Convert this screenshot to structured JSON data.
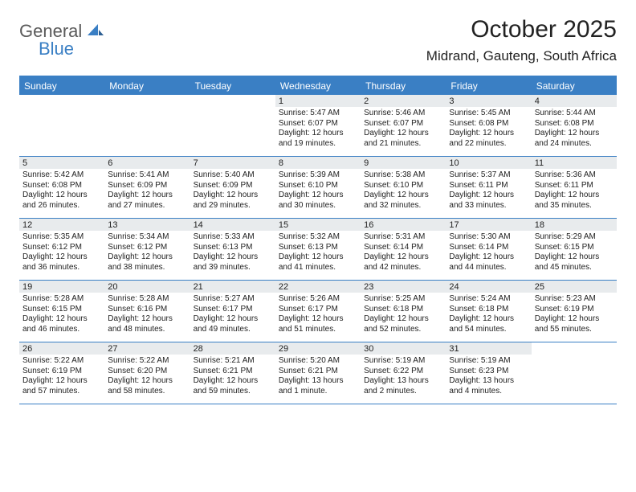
{
  "logo": {
    "word1": "General",
    "word2": "Blue"
  },
  "title": "October 2025",
  "location": "Midrand, Gauteng, South Africa",
  "colors": {
    "brand": "#3a7fc4",
    "band": "#e8ebed",
    "text": "#222222",
    "logo_gray": "#5a5a5a"
  },
  "days_of_week": [
    "Sunday",
    "Monday",
    "Tuesday",
    "Wednesday",
    "Thursday",
    "Friday",
    "Saturday"
  ],
  "weeks": [
    [
      null,
      null,
      null,
      {
        "n": "1",
        "sr": "Sunrise: 5:47 AM",
        "ss": "Sunset: 6:07 PM",
        "d1": "Daylight: 12 hours",
        "d2": "and 19 minutes."
      },
      {
        "n": "2",
        "sr": "Sunrise: 5:46 AM",
        "ss": "Sunset: 6:07 PM",
        "d1": "Daylight: 12 hours",
        "d2": "and 21 minutes."
      },
      {
        "n": "3",
        "sr": "Sunrise: 5:45 AM",
        "ss": "Sunset: 6:08 PM",
        "d1": "Daylight: 12 hours",
        "d2": "and 22 minutes."
      },
      {
        "n": "4",
        "sr": "Sunrise: 5:44 AM",
        "ss": "Sunset: 6:08 PM",
        "d1": "Daylight: 12 hours",
        "d2": "and 24 minutes."
      }
    ],
    [
      {
        "n": "5",
        "sr": "Sunrise: 5:42 AM",
        "ss": "Sunset: 6:08 PM",
        "d1": "Daylight: 12 hours",
        "d2": "and 26 minutes."
      },
      {
        "n": "6",
        "sr": "Sunrise: 5:41 AM",
        "ss": "Sunset: 6:09 PM",
        "d1": "Daylight: 12 hours",
        "d2": "and 27 minutes."
      },
      {
        "n": "7",
        "sr": "Sunrise: 5:40 AM",
        "ss": "Sunset: 6:09 PM",
        "d1": "Daylight: 12 hours",
        "d2": "and 29 minutes."
      },
      {
        "n": "8",
        "sr": "Sunrise: 5:39 AM",
        "ss": "Sunset: 6:10 PM",
        "d1": "Daylight: 12 hours",
        "d2": "and 30 minutes."
      },
      {
        "n": "9",
        "sr": "Sunrise: 5:38 AM",
        "ss": "Sunset: 6:10 PM",
        "d1": "Daylight: 12 hours",
        "d2": "and 32 minutes."
      },
      {
        "n": "10",
        "sr": "Sunrise: 5:37 AM",
        "ss": "Sunset: 6:11 PM",
        "d1": "Daylight: 12 hours",
        "d2": "and 33 minutes."
      },
      {
        "n": "11",
        "sr": "Sunrise: 5:36 AM",
        "ss": "Sunset: 6:11 PM",
        "d1": "Daylight: 12 hours",
        "d2": "and 35 minutes."
      }
    ],
    [
      {
        "n": "12",
        "sr": "Sunrise: 5:35 AM",
        "ss": "Sunset: 6:12 PM",
        "d1": "Daylight: 12 hours",
        "d2": "and 36 minutes."
      },
      {
        "n": "13",
        "sr": "Sunrise: 5:34 AM",
        "ss": "Sunset: 6:12 PM",
        "d1": "Daylight: 12 hours",
        "d2": "and 38 minutes."
      },
      {
        "n": "14",
        "sr": "Sunrise: 5:33 AM",
        "ss": "Sunset: 6:13 PM",
        "d1": "Daylight: 12 hours",
        "d2": "and 39 minutes."
      },
      {
        "n": "15",
        "sr": "Sunrise: 5:32 AM",
        "ss": "Sunset: 6:13 PM",
        "d1": "Daylight: 12 hours",
        "d2": "and 41 minutes."
      },
      {
        "n": "16",
        "sr": "Sunrise: 5:31 AM",
        "ss": "Sunset: 6:14 PM",
        "d1": "Daylight: 12 hours",
        "d2": "and 42 minutes."
      },
      {
        "n": "17",
        "sr": "Sunrise: 5:30 AM",
        "ss": "Sunset: 6:14 PM",
        "d1": "Daylight: 12 hours",
        "d2": "and 44 minutes."
      },
      {
        "n": "18",
        "sr": "Sunrise: 5:29 AM",
        "ss": "Sunset: 6:15 PM",
        "d1": "Daylight: 12 hours",
        "d2": "and 45 minutes."
      }
    ],
    [
      {
        "n": "19",
        "sr": "Sunrise: 5:28 AM",
        "ss": "Sunset: 6:15 PM",
        "d1": "Daylight: 12 hours",
        "d2": "and 46 minutes."
      },
      {
        "n": "20",
        "sr": "Sunrise: 5:28 AM",
        "ss": "Sunset: 6:16 PM",
        "d1": "Daylight: 12 hours",
        "d2": "and 48 minutes."
      },
      {
        "n": "21",
        "sr": "Sunrise: 5:27 AM",
        "ss": "Sunset: 6:17 PM",
        "d1": "Daylight: 12 hours",
        "d2": "and 49 minutes."
      },
      {
        "n": "22",
        "sr": "Sunrise: 5:26 AM",
        "ss": "Sunset: 6:17 PM",
        "d1": "Daylight: 12 hours",
        "d2": "and 51 minutes."
      },
      {
        "n": "23",
        "sr": "Sunrise: 5:25 AM",
        "ss": "Sunset: 6:18 PM",
        "d1": "Daylight: 12 hours",
        "d2": "and 52 minutes."
      },
      {
        "n": "24",
        "sr": "Sunrise: 5:24 AM",
        "ss": "Sunset: 6:18 PM",
        "d1": "Daylight: 12 hours",
        "d2": "and 54 minutes."
      },
      {
        "n": "25",
        "sr": "Sunrise: 5:23 AM",
        "ss": "Sunset: 6:19 PM",
        "d1": "Daylight: 12 hours",
        "d2": "and 55 minutes."
      }
    ],
    [
      {
        "n": "26",
        "sr": "Sunrise: 5:22 AM",
        "ss": "Sunset: 6:19 PM",
        "d1": "Daylight: 12 hours",
        "d2": "and 57 minutes."
      },
      {
        "n": "27",
        "sr": "Sunrise: 5:22 AM",
        "ss": "Sunset: 6:20 PM",
        "d1": "Daylight: 12 hours",
        "d2": "and 58 minutes."
      },
      {
        "n": "28",
        "sr": "Sunrise: 5:21 AM",
        "ss": "Sunset: 6:21 PM",
        "d1": "Daylight: 12 hours",
        "d2": "and 59 minutes."
      },
      {
        "n": "29",
        "sr": "Sunrise: 5:20 AM",
        "ss": "Sunset: 6:21 PM",
        "d1": "Daylight: 13 hours",
        "d2": "and 1 minute."
      },
      {
        "n": "30",
        "sr": "Sunrise: 5:19 AM",
        "ss": "Sunset: 6:22 PM",
        "d1": "Daylight: 13 hours",
        "d2": "and 2 minutes."
      },
      {
        "n": "31",
        "sr": "Sunrise: 5:19 AM",
        "ss": "Sunset: 6:23 PM",
        "d1": "Daylight: 13 hours",
        "d2": "and 4 minutes."
      },
      null
    ]
  ]
}
